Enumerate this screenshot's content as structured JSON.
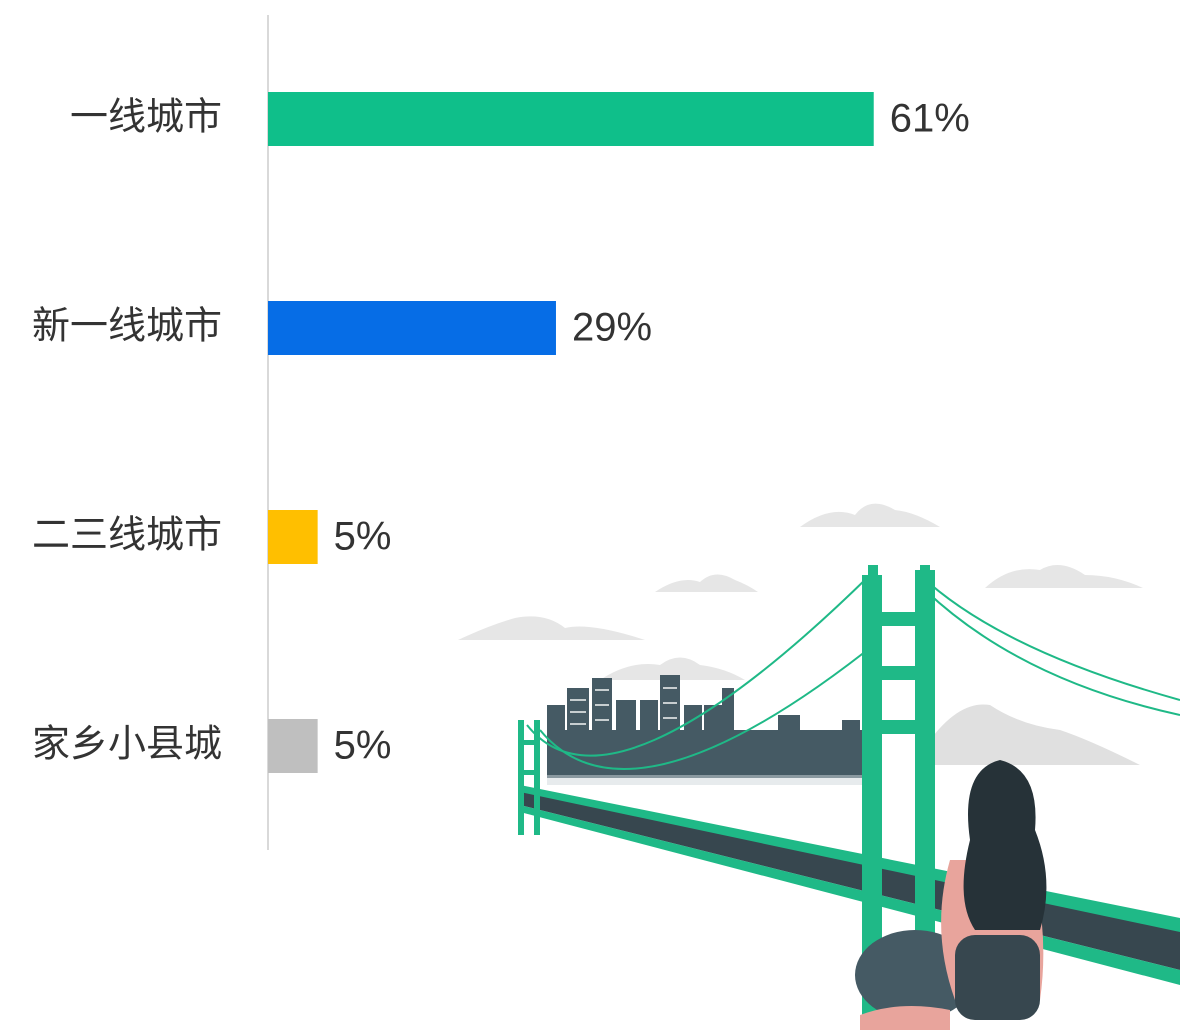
{
  "chart_data": {
    "type": "bar",
    "orientation": "horizontal",
    "categories": [
      "一线城市",
      "新一线城市",
      "二三线城市",
      "家乡小县城"
    ],
    "values": [
      61,
      29,
      5,
      5
    ],
    "value_labels": [
      "61%",
      "29%",
      "5%",
      "5%"
    ],
    "colors": [
      "#0fbf8a",
      "#066de6",
      "#ffbf00",
      "#bfbfbf"
    ]
  }
}
